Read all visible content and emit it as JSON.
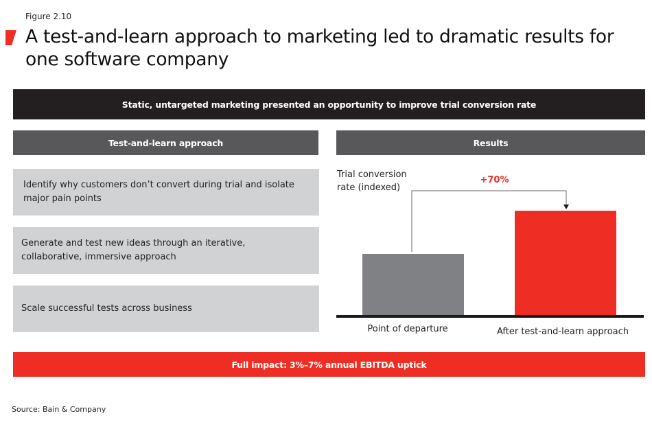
{
  "header": {
    "figure_label": "Figure 2.10",
    "title": "A test-and-learn approach to marketing led to dramatic results for one software company",
    "accent_color": "#ee2e24"
  },
  "banner": {
    "text": "Static, untargeted marketing presented an opportunity to improve trial conversion rate"
  },
  "left_panel": {
    "header": "Test-and-learn approach",
    "steps": [
      "Identify why customers don’t convert during trial and isolate major pain points",
      "Generate and test new ideas through an iterative, collaborative, immersive approach",
      "Scale successful tests across business"
    ]
  },
  "right_panel": {
    "header": "Results"
  },
  "impact": {
    "text": "Full impact: 3%–7% annual EBITDA uptick"
  },
  "footer": {
    "source": "Source: Bain & Company"
  },
  "colors": {
    "banner_bg": "#231f20",
    "panel_header_bg": "#58585a",
    "step_bg": "#d1d2d4",
    "bar_before": "#808184",
    "bar_after": "#ee2e24",
    "impact_bg": "#ee2e24"
  },
  "chart_data": {
    "type": "bar",
    "title": "Results",
    "ylabel": "Trial conversion rate (indexed)",
    "xlabel": "",
    "categories": [
      "Point of departure",
      "After test-and-learn approach"
    ],
    "values": [
      100,
      170
    ],
    "colors": [
      "#808184",
      "#ee2e24"
    ],
    "annotations": [
      {
        "text": "+70%",
        "from": "Point of departure",
        "to": "After test-and-learn approach",
        "color": "#ee2e24"
      }
    ],
    "ylim": [
      0,
      200
    ],
    "grid": false,
    "legend": "none",
    "y_axis_ticks": false
  }
}
